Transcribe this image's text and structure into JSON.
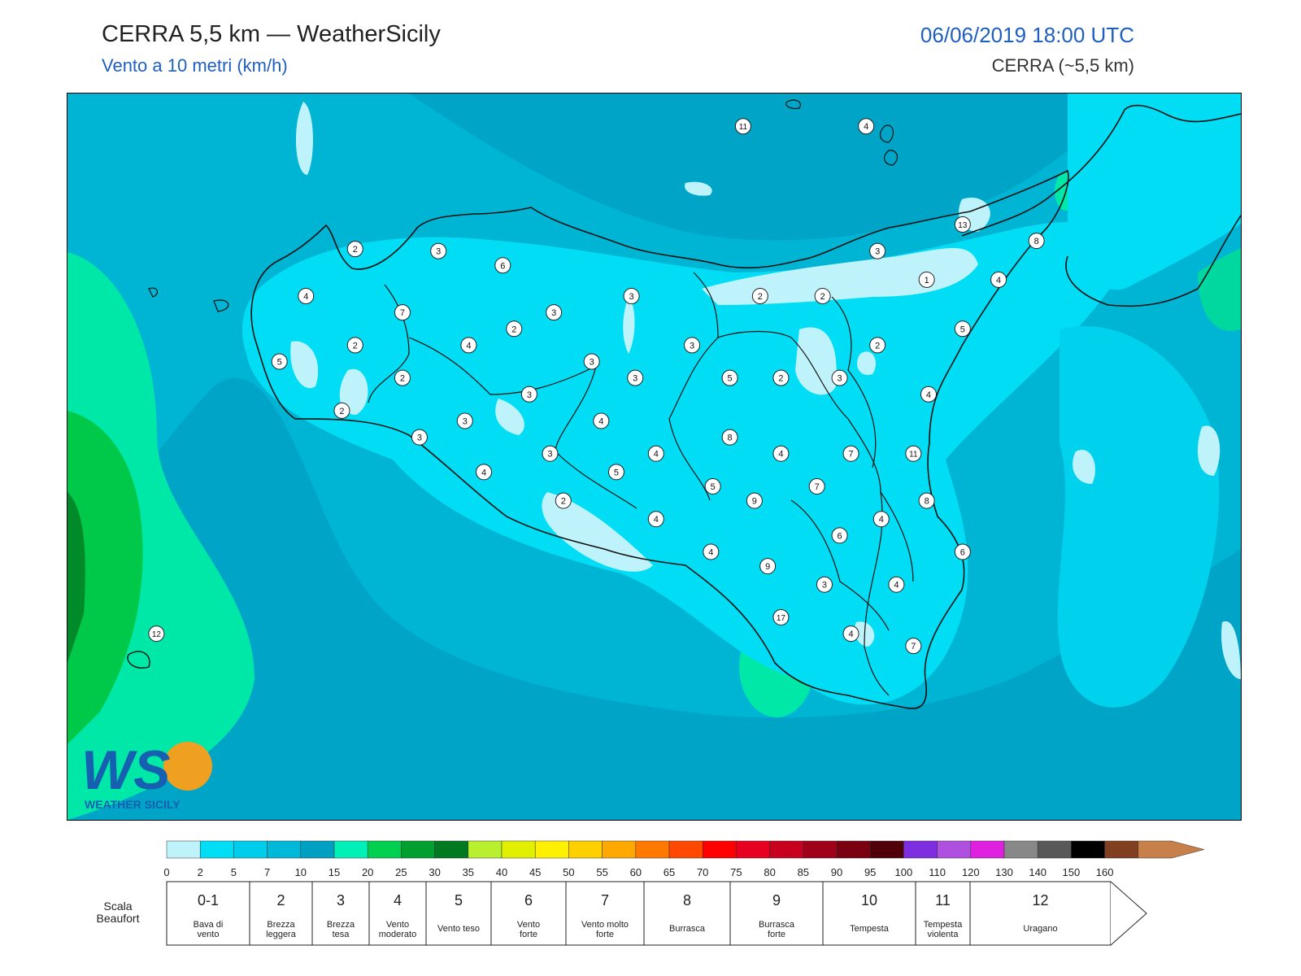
{
  "header": {
    "title": "CERRA 5,5 km — WeatherSicily",
    "subtitle": "Vento a 10 metri (km/h)",
    "datetime": "06/06/2019 18:00 UTC",
    "model": "CERRA (~5,5 km)"
  },
  "logo": {
    "big": "WS",
    "small": "WEATHER SICILY",
    "icon": "sun-bird-logo-icon"
  },
  "colorbar": {
    "ticks": [
      "0",
      "2",
      "5",
      "7",
      "10",
      "15",
      "20",
      "25",
      "30",
      "35",
      "40",
      "45",
      "50",
      "55",
      "60",
      "65",
      "70",
      "75",
      "80",
      "85",
      "90",
      "95",
      "100",
      "110",
      "120",
      "130",
      "140",
      "150",
      "160"
    ],
    "colors": [
      "#bff3fb",
      "#00def5",
      "#00cceb",
      "#00b8d8",
      "#00a0c2",
      "#00f0b8",
      "#00d050",
      "#00a030",
      "#007a20",
      "#b8f030",
      "#e0f000",
      "#fff000",
      "#ffd000",
      "#ffa800",
      "#ff7800",
      "#ff4800",
      "#ff0000",
      "#e80020",
      "#c80020",
      "#a00018",
      "#780010",
      "#500008",
      "#7d2ee0",
      "#b050e0",
      "#e020e0",
      "#888888",
      "#585858",
      "#000000",
      "#804020",
      "#c8804a"
    ]
  },
  "beaufort": {
    "label_line1": "Scala",
    "label_line2": "Beaufort",
    "cells": [
      {
        "force": "0-1",
        "name1": "Bava di",
        "name2": "vento"
      },
      {
        "force": "2",
        "name1": "Brezza",
        "name2": "leggera"
      },
      {
        "force": "3",
        "name1": "Brezza",
        "name2": "tesa"
      },
      {
        "force": "4",
        "name1": "Vento",
        "name2": "moderato"
      },
      {
        "force": "5",
        "name1": "Vento teso",
        "name2": ""
      },
      {
        "force": "6",
        "name1": "Vento",
        "name2": "forte"
      },
      {
        "force": "7",
        "name1": "Vento molto",
        "name2": "forte"
      },
      {
        "force": "8",
        "name1": "Burrasca",
        "name2": ""
      },
      {
        "force": "9",
        "name1": "Burrasca",
        "name2": "forte"
      },
      {
        "force": "10",
        "name1": "Tempesta",
        "name2": ""
      },
      {
        "force": "11",
        "name1": "Tempesta",
        "name2": "violenta"
      },
      {
        "force": "12",
        "name1": "Uragano",
        "name2": ""
      }
    ]
  },
  "stations": [
    {
      "v": "11",
      "lon": 14.57,
      "lat": 38.79
    },
    {
      "v": "4",
      "lon": 15.22,
      "lat": 38.79
    },
    {
      "v": "13",
      "lon": 15.73,
      "lat": 38.31
    },
    {
      "v": "8",
      "lon": 16.12,
      "lat": 38.23
    },
    {
      "v": "2",
      "lon": 12.52,
      "lat": 38.19
    },
    {
      "v": "3",
      "lon": 12.96,
      "lat": 38.18
    },
    {
      "v": "6",
      "lon": 13.3,
      "lat": 38.11
    },
    {
      "v": "3",
      "lon": 15.28,
      "lat": 38.18
    },
    {
      "v": "1",
      "lon": 15.54,
      "lat": 38.04
    },
    {
      "v": "4",
      "lon": 15.92,
      "lat": 38.04
    },
    {
      "v": "4",
      "lon": 12.26,
      "lat": 37.96
    },
    {
      "v": "3",
      "lon": 13.98,
      "lat": 37.96
    },
    {
      "v": "2",
      "lon": 14.66,
      "lat": 37.96
    },
    {
      "v": "2",
      "lon": 14.99,
      "lat": 37.96
    },
    {
      "v": "7",
      "lon": 12.77,
      "lat": 37.88
    },
    {
      "v": "3",
      "lon": 13.57,
      "lat": 37.88
    },
    {
      "v": "2",
      "lon": 13.36,
      "lat": 37.8
    },
    {
      "v": "5",
      "lon": 15.73,
      "lat": 37.8
    },
    {
      "v": "2",
      "lon": 12.52,
      "lat": 37.72
    },
    {
      "v": "4",
      "lon": 13.12,
      "lat": 37.72
    },
    {
      "v": "3",
      "lon": 14.3,
      "lat": 37.72
    },
    {
      "v": "2",
      "lon": 15.28,
      "lat": 37.72
    },
    {
      "v": "5",
      "lon": 12.12,
      "lat": 37.64
    },
    {
      "v": "3",
      "lon": 13.77,
      "lat": 37.64
    },
    {
      "v": "2",
      "lon": 12.77,
      "lat": 37.56
    },
    {
      "v": "3",
      "lon": 14.0,
      "lat": 37.56
    },
    {
      "v": "5",
      "lon": 14.5,
      "lat": 37.56
    },
    {
      "v": "2",
      "lon": 14.77,
      "lat": 37.56
    },
    {
      "v": "3",
      "lon": 15.08,
      "lat": 37.56
    },
    {
      "v": "3",
      "lon": 13.44,
      "lat": 37.48
    },
    {
      "v": "4",
      "lon": 15.55,
      "lat": 37.48
    },
    {
      "v": "2",
      "lon": 12.45,
      "lat": 37.4
    },
    {
      "v": "3",
      "lon": 13.1,
      "lat": 37.35
    },
    {
      "v": "4",
      "lon": 13.82,
      "lat": 37.35
    },
    {
      "v": "3",
      "lon": 12.86,
      "lat": 37.27
    },
    {
      "v": "8",
      "lon": 14.5,
      "lat": 37.27
    },
    {
      "v": "3",
      "lon": 13.55,
      "lat": 37.19
    },
    {
      "v": "4",
      "lon": 14.11,
      "lat": 37.19
    },
    {
      "v": "4",
      "lon": 14.77,
      "lat": 37.19
    },
    {
      "v": "7",
      "lon": 15.14,
      "lat": 37.19
    },
    {
      "v": "11",
      "lon": 15.47,
      "lat": 37.19
    },
    {
      "v": "4",
      "lon": 13.2,
      "lat": 37.1
    },
    {
      "v": "5",
      "lon": 13.9,
      "lat": 37.1
    },
    {
      "v": "5",
      "lon": 14.41,
      "lat": 37.03
    },
    {
      "v": "7",
      "lon": 14.96,
      "lat": 37.03
    },
    {
      "v": "2",
      "lon": 13.62,
      "lat": 36.96
    },
    {
      "v": "9",
      "lon": 14.63,
      "lat": 36.96
    },
    {
      "v": "8",
      "lon": 15.54,
      "lat": 36.96
    },
    {
      "v": "4",
      "lon": 14.11,
      "lat": 36.87
    },
    {
      "v": "4",
      "lon": 15.3,
      "lat": 36.87
    },
    {
      "v": "6",
      "lon": 15.08,
      "lat": 36.79
    },
    {
      "v": "4",
      "lon": 14.4,
      "lat": 36.71
    },
    {
      "v": "6",
      "lon": 15.73,
      "lat": 36.71
    },
    {
      "v": "9",
      "lon": 14.7,
      "lat": 36.64
    },
    {
      "v": "3",
      "lon": 15.0,
      "lat": 36.55
    },
    {
      "v": "4",
      "lon": 15.38,
      "lat": 36.55
    },
    {
      "v": "17",
      "lon": 14.77,
      "lat": 36.39
    },
    {
      "v": "4",
      "lon": 15.14,
      "lat": 36.31
    },
    {
      "v": "7",
      "lon": 15.47,
      "lat": 36.25
    },
    {
      "v": "12",
      "lon": 11.47,
      "lat": 36.31
    }
  ]
}
